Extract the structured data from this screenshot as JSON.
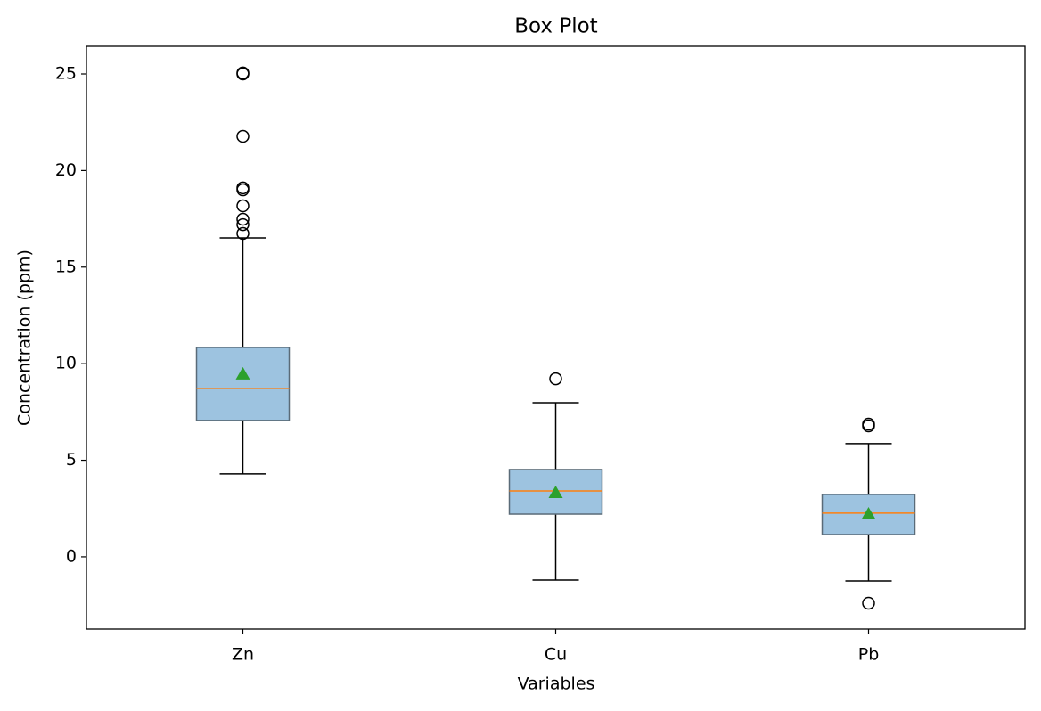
{
  "chart_data": {
    "type": "box",
    "title": "Box Plot",
    "x_label": "Variables",
    "y_label": "Concentration (ppm)",
    "categories": [
      "Zn",
      "Cu",
      "Pb"
    ],
    "boxes": [
      {
        "whislo": 4.29,
        "q1": 7.06,
        "med": 8.72,
        "q3": 10.84,
        "whishi": 16.51,
        "mean": 9.46,
        "fliers": [
          25.0,
          25.05,
          21.77,
          19.1,
          19.0,
          18.17,
          17.48,
          17.2,
          16.74
        ]
      },
      {
        "whislo": -1.2,
        "q1": 2.21,
        "med": 3.41,
        "q3": 4.52,
        "whishi": 7.98,
        "mean": 3.32,
        "fliers": [
          9.22
        ]
      },
      {
        "whislo": -1.25,
        "q1": 1.15,
        "med": 2.26,
        "q3": 3.23,
        "whishi": 5.86,
        "mean": 2.21,
        "fliers": [
          6.87,
          6.78,
          -2.4
        ]
      }
    ],
    "box_color": "#9dc3e0",
    "median_color": "#ff7f0e",
    "mean_color": "#2ca02c",
    "ylim": [
      -3.74,
      26.43
    ],
    "yticks": [
      0,
      5,
      10,
      15,
      20,
      25
    ]
  }
}
